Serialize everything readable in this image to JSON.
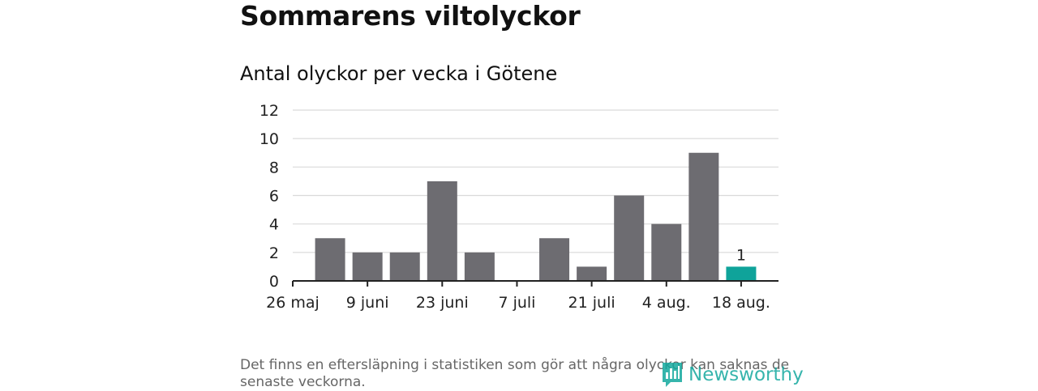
{
  "header": {
    "title": "Sommarens viltolyckor",
    "subtitle": "Antal olyckor per vecka i Götene"
  },
  "chart_data": {
    "type": "bar",
    "x_tick_labels": [
      "26 maj",
      "9 juni",
      "23 juni",
      "7 juli",
      "21 juli",
      "4 aug.",
      "18 aug."
    ],
    "values": [
      3,
      2,
      2,
      7,
      2,
      0,
      3,
      1,
      6,
      4,
      9,
      1
    ],
    "highlight_index": 11,
    "highlight_label": "1",
    "y_ticks": [
      0,
      2,
      4,
      6,
      8,
      10,
      12
    ],
    "ylim": [
      0,
      12
    ],
    "grid": true,
    "colors": {
      "bar": "#6d6c71",
      "highlight": "#0fa39a",
      "grid": "#d9d9d9",
      "axis": "#222222"
    }
  },
  "footer": {
    "note": "Det finns en eftersläpning i statistiken som gör att några olyckor kan saknas de senaste veckorna.",
    "logo_text": "Newsworthy",
    "logo_icon": "bar-chart-speech-icon"
  }
}
